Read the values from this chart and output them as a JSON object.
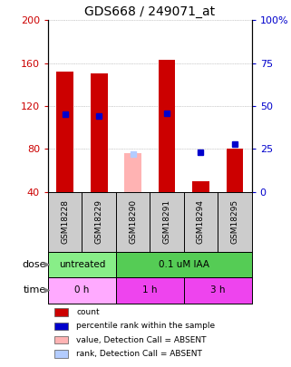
{
  "title": "GDS668 / 249071_at",
  "samples": [
    "GSM18228",
    "GSM18229",
    "GSM18290",
    "GSM18291",
    "GSM18294",
    "GSM18295"
  ],
  "bar_values": [
    152,
    150,
    null,
    163,
    50,
    80
  ],
  "bar_colors_present": "#cc0000",
  "bar_colors_absent": "#ffb3b3",
  "rank_values": [
    45,
    44,
    null,
    46,
    23,
    28
  ],
  "rank_absent": [
    null,
    null,
    22,
    null,
    null,
    null
  ],
  "rank_absent_color": "#b3ccff",
  "rank_present_color": "#0000cc",
  "absent_bar_value": 76,
  "ylim_left": [
    40,
    200
  ],
  "ylim_right": [
    0,
    100
  ],
  "yticks_left": [
    40,
    80,
    120,
    160,
    200
  ],
  "yticks_right": [
    0,
    25,
    50,
    75,
    100
  ],
  "ytick_labels_right": [
    "0",
    "25",
    "50",
    "75",
    "100%"
  ],
  "dose_labels": [
    {
      "label": "untreated",
      "start": 0,
      "end": 2,
      "color": "#88ee88"
    },
    {
      "label": "0.1 uM IAA",
      "start": 2,
      "end": 6,
      "color": "#55cc55"
    }
  ],
  "time_labels": [
    {
      "label": "0 h",
      "start": 0,
      "end": 2,
      "color": "#ffaaff"
    },
    {
      "label": "1 h",
      "start": 2,
      "end": 4,
      "color": "#ee44ee"
    },
    {
      "label": "3 h",
      "start": 4,
      "end": 6,
      "color": "#ee44ee"
    }
  ],
  "bar_width": 0.5,
  "grid_color": "#aaaaaa",
  "background_color": "#ffffff",
  "plot_bg": "#ffffff",
  "left_axis_color": "#cc0000",
  "right_axis_color": "#0000cc",
  "sample_label_bg": "#cccccc",
  "legend_items": [
    {
      "color": "#cc0000",
      "label": "count"
    },
    {
      "color": "#0000cc",
      "label": "percentile rank within the sample"
    },
    {
      "color": "#ffb3b3",
      "label": "value, Detection Call = ABSENT"
    },
    {
      "color": "#b3ccff",
      "label": "rank, Detection Call = ABSENT"
    }
  ]
}
